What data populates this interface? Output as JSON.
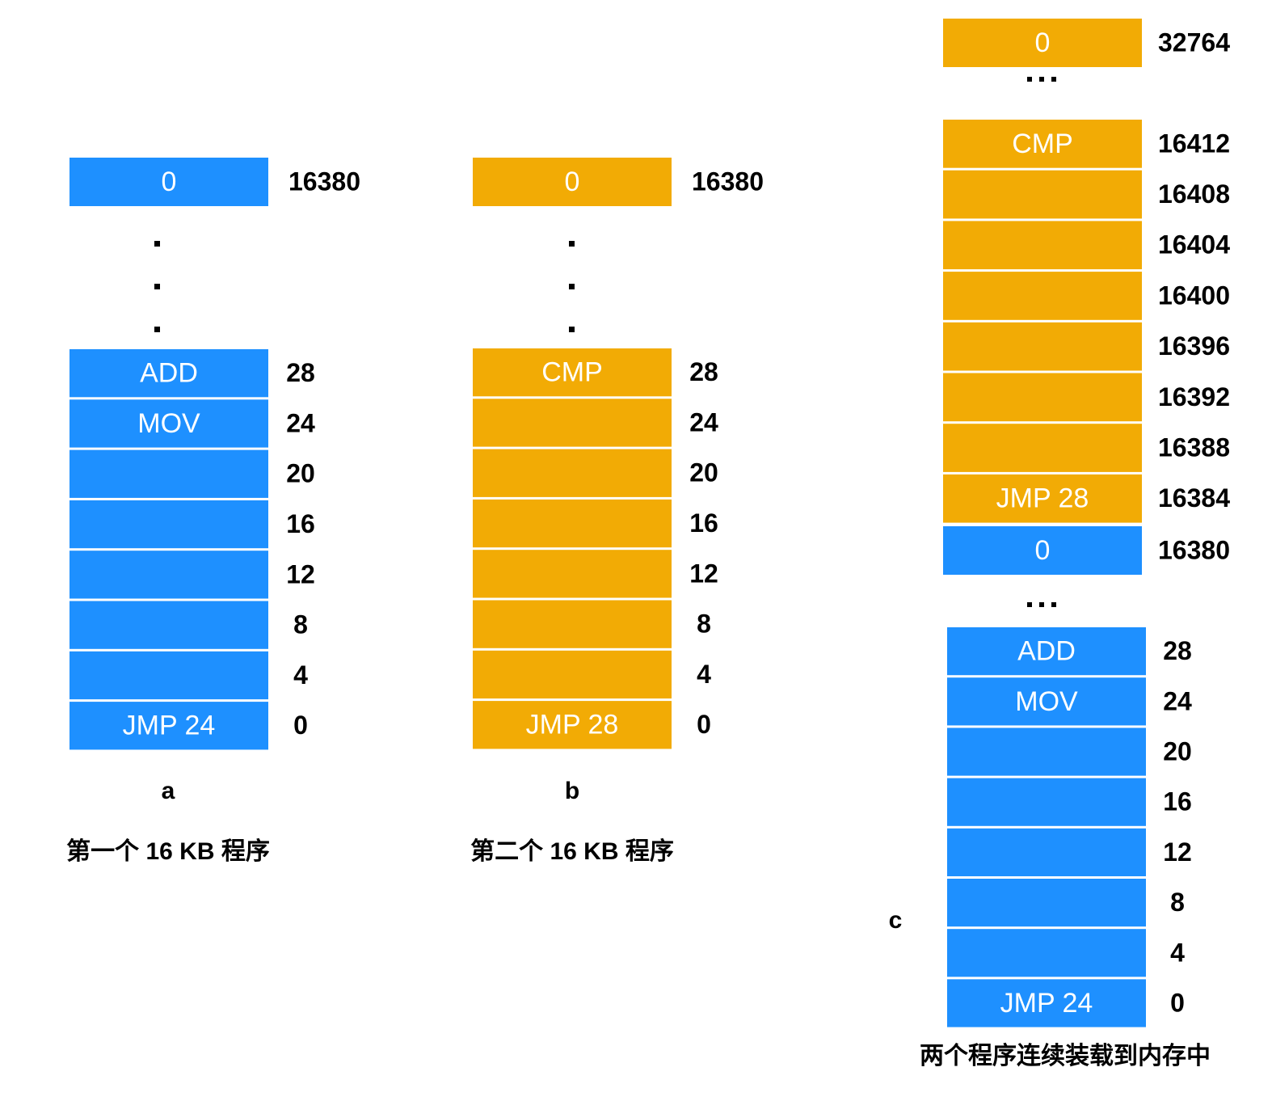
{
  "panels": [
    {
      "label": "a",
      "caption": "第一个 16 KB 程序",
      "blocks": [
        {
          "color": "#1e90ff",
          "cells": [
            {
              "text": "0",
              "address": 16380
            }
          ]
        },
        {
          "color": "#1e90ff",
          "cells": [
            {
              "text": "ADD",
              "address": 28
            },
            {
              "text": "MOV",
              "address": 24
            },
            {
              "address": 20
            },
            {
              "address": 16
            },
            {
              "address": 12
            },
            {
              "address": 8
            },
            {
              "address": 4
            },
            {
              "text": "JMP 24",
              "address": 0
            }
          ]
        }
      ]
    },
    {
      "label": "b",
      "caption": "第二个 16 KB 程序",
      "blocks": [
        {
          "color": "#f2ab05",
          "cells": [
            {
              "text": "0",
              "address": 16380
            }
          ]
        },
        {
          "color": "#f2ab05",
          "cells": [
            {
              "text": "CMP",
              "address": 28
            },
            {
              "address": 24
            },
            {
              "address": 20
            },
            {
              "address": 16
            },
            {
              "address": 12
            },
            {
              "address": 8
            },
            {
              "address": 4
            },
            {
              "text": "JMP 28",
              "address": 0
            }
          ]
        }
      ]
    },
    {
      "label": "c",
      "caption": "两个程序连续装载到内存中",
      "blocks": [
        {
          "color": "#f2ab05",
          "cells": [
            {
              "text": "0",
              "address": 32764
            }
          ]
        },
        {
          "color": "#f2ab05",
          "cells": [
            {
              "text": "CMP",
              "address": 16412
            },
            {
              "address": 16408
            },
            {
              "address": 16404
            },
            {
              "address": 16400
            },
            {
              "address": 16396
            },
            {
              "address": 16392
            },
            {
              "address": 16388
            },
            {
              "text": "JMP 28",
              "address": 16384
            }
          ]
        },
        {
          "color": "#1e90ff",
          "cells": [
            {
              "text": "0",
              "address": 16380
            }
          ]
        },
        {
          "color": "#1e90ff",
          "cells": [
            {
              "text": "ADD",
              "address": 28
            },
            {
              "text": "MOV",
              "address": 24
            },
            {
              "address": 20
            },
            {
              "address": 16
            },
            {
              "address": 12
            },
            {
              "address": 8
            },
            {
              "address": 4
            },
            {
              "text": "JMP 24",
              "address": 0
            }
          ]
        }
      ]
    }
  ]
}
